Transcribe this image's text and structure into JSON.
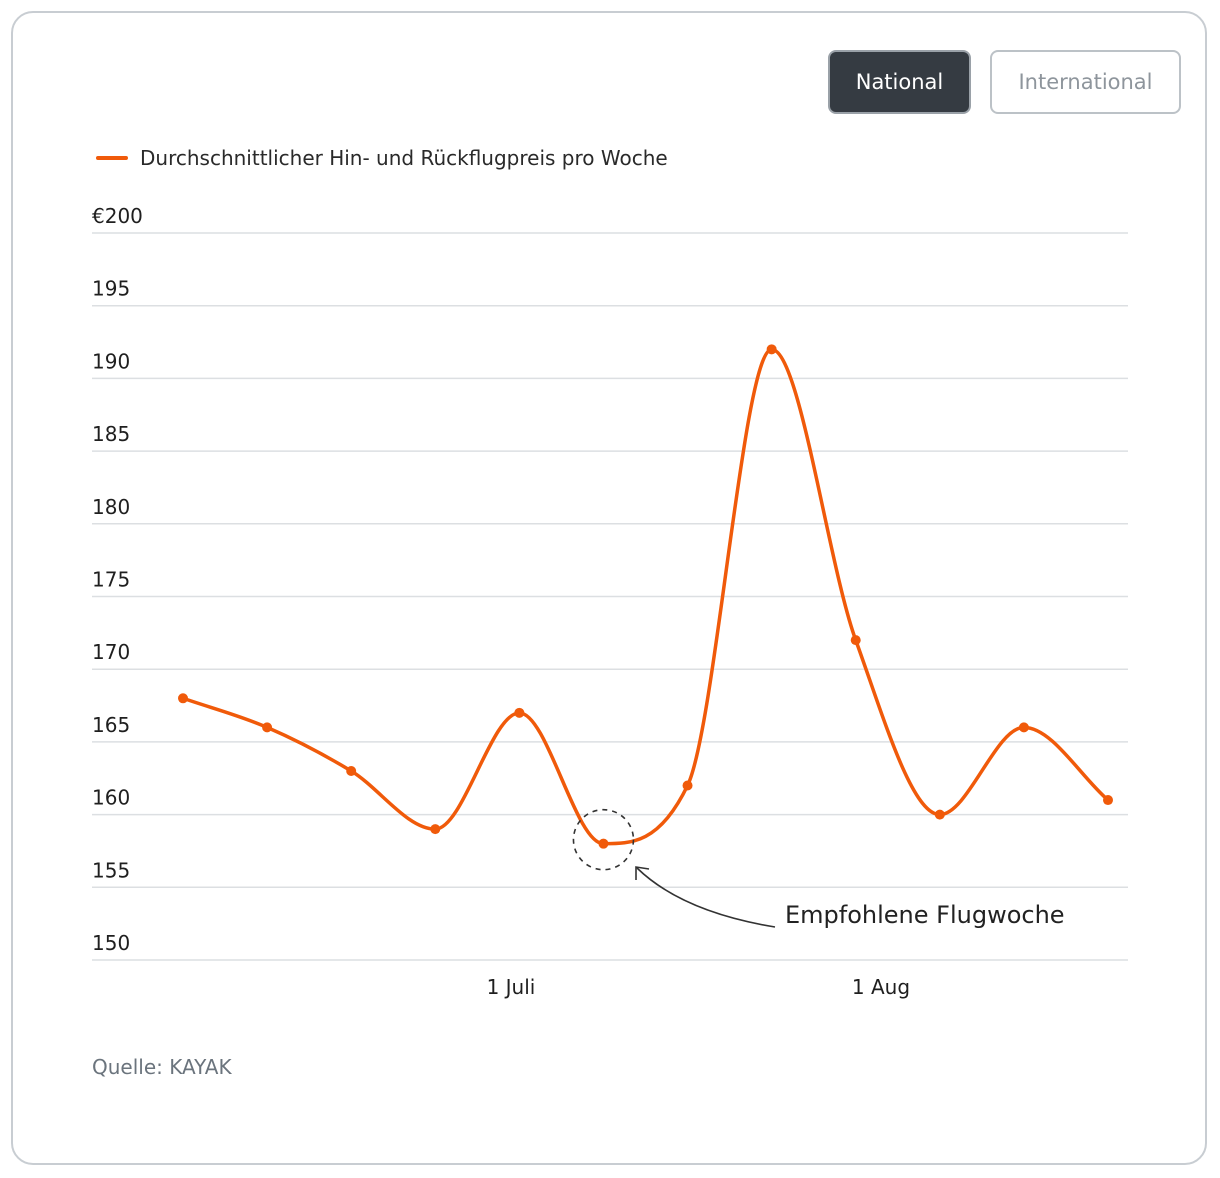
{
  "buttons": {
    "national": "National",
    "international": "International"
  },
  "legend": {
    "label": "Durchschnittlicher Hin- und Rückflugpreis pro Woche",
    "color": "#f05a0a"
  },
  "source": "Quelle: KAYAK",
  "annotation": {
    "label": "Empfohlene Flugwoche",
    "point_index": 5
  },
  "chart_data": {
    "type": "line",
    "title": "",
    "xlabel": "",
    "ylabel": "",
    "ylim": [
      150,
      200
    ],
    "yticks": [
      150,
      155,
      160,
      165,
      170,
      175,
      180,
      185,
      190,
      195,
      200
    ],
    "ytick_labels": [
      "150",
      "155",
      "160",
      "165",
      "170",
      "175",
      "180",
      "185",
      "190",
      "195",
      "€200"
    ],
    "xtick_labels": [
      {
        "label": "1 Juli",
        "after_point": 3.9
      },
      {
        "label": "1 Aug",
        "after_point": 8.3
      }
    ],
    "grid": true,
    "legend_position": "top-left",
    "series": [
      {
        "name": "Durchschnittlicher Hin- und Rückflugpreis pro Woche",
        "color": "#f05a0a",
        "values": [
          168,
          166,
          163,
          159,
          167,
          158,
          162,
          192,
          172,
          160,
          166,
          161
        ]
      }
    ]
  }
}
